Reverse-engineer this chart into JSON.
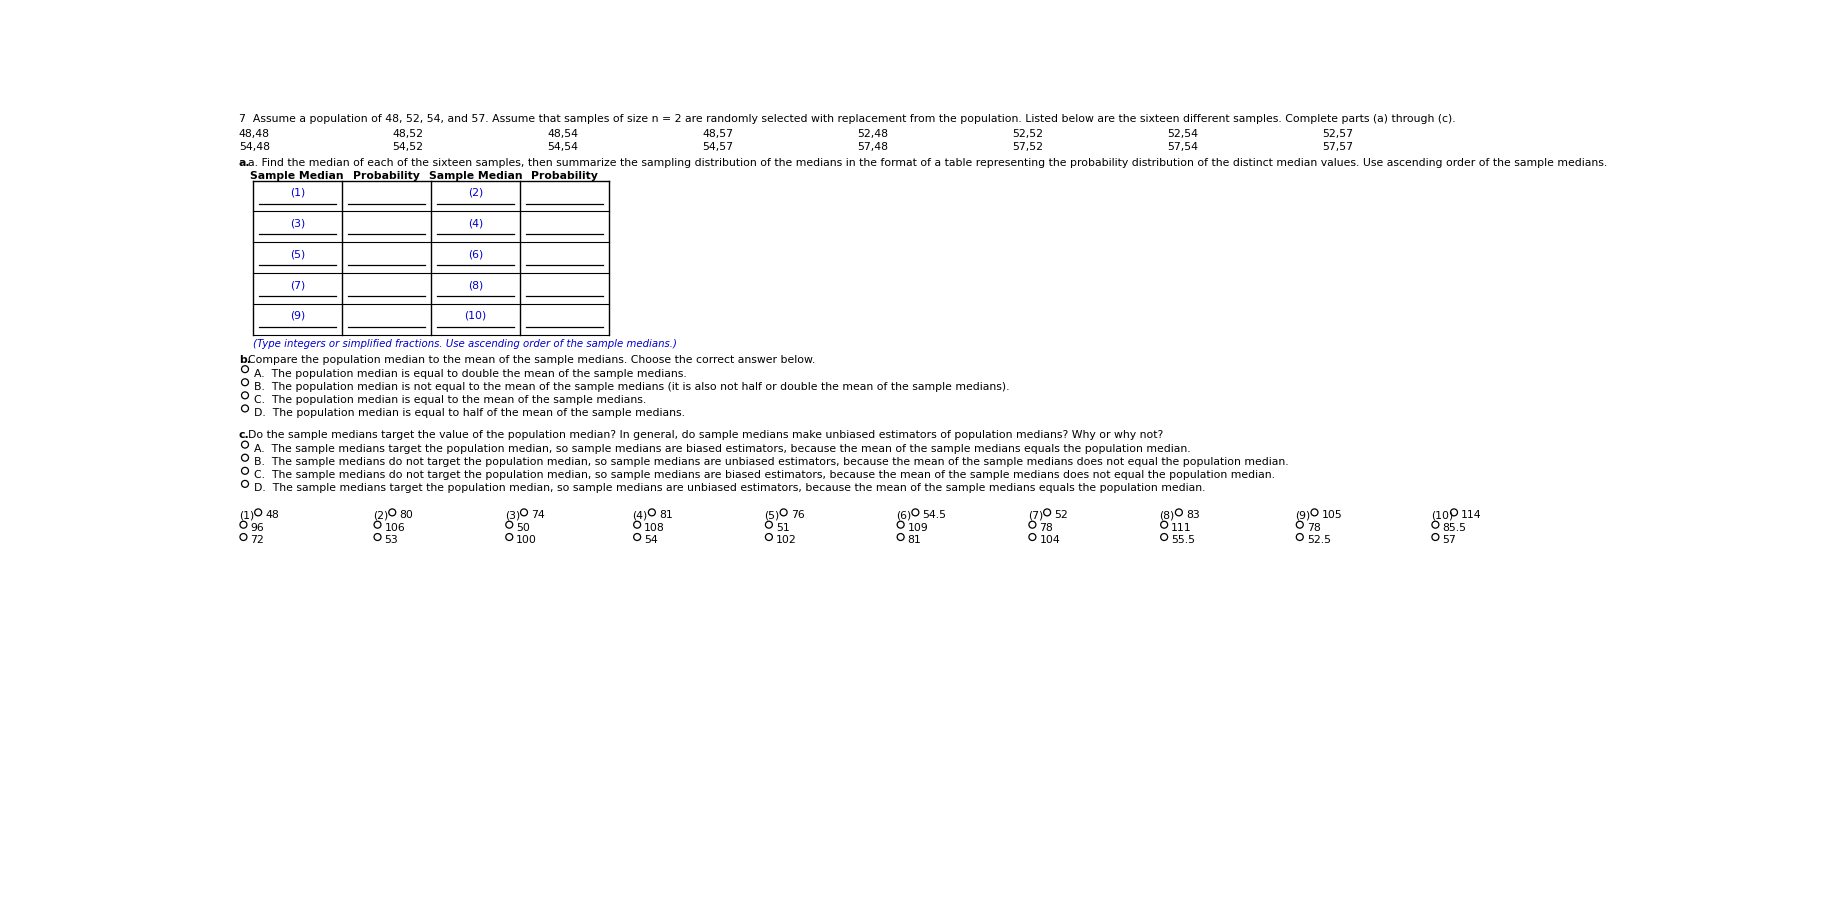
{
  "title_text": "7  Assume a population of 48, 52, 54, and 57. Assume that samples of size n = 2 are randomly selected with replacement from the population. Listed below are the sixteen different samples. Complete parts (a) through (c).",
  "samples_row1": [
    "48,48",
    "48,52",
    "48,54",
    "48,57",
    "52,48",
    "52,52",
    "52,54",
    "52,57"
  ],
  "samples_row2": [
    "54,48",
    "54,52",
    "54,54",
    "54,57",
    "57,48",
    "57,52",
    "57,54",
    "57,57"
  ],
  "part_a_text": "a. Find the median of each of the sixteen samples, then summarize the sampling distribution of the medians in the format of a table representing the probability distribution of the distinct median values. Use ascending order of the sample medians.",
  "table_col_headers": [
    "Sample Median",
    "Probability",
    "Sample Median",
    "Probability"
  ],
  "table_numbers": [
    "(1)",
    "(2)",
    "(3)",
    "(4)",
    "(5)",
    "(6)",
    "(7)",
    "(8)",
    "(9)",
    "(10)"
  ],
  "table_note": "(Type integers or simplified fractions. Use ascending order of the sample medians.)",
  "part_b_label": "b.",
  "part_b_text": "Compare the population median to the mean of the sample medians. Choose the correct answer below.",
  "part_b_options": [
    "A.  The population median is equal to double the mean of the sample medians.",
    "B.  The population median is not equal to the mean of the sample medians (it is also not half or double the mean of the sample medians).",
    "C.  The population median is equal to the mean of the sample medians.",
    "D.  The population median is equal to half of the mean of the sample medians."
  ],
  "part_c_label": "c.",
  "part_c_text": "Do the sample medians target the value of the population median? In general, do sample medians make unbiased estimators of population medians? Why or why not?",
  "part_c_options": [
    "A.  The sample medians target the population median, so sample medians are biased estimators, because the mean of the sample medians equals the population median.",
    "B.  The sample medians do not target the population median, so sample medians are unbiased estimators, because the mean of the sample medians does not equal the population median.",
    "C.  The sample medians do not target the population median, so sample medians are biased estimators, because the mean of the sample medians does not equal the population median.",
    "D.  The sample medians target the population median, so sample medians are unbiased estimators, because the mean of the sample medians equals the population median."
  ],
  "group_labels": [
    "(1)",
    "(2)",
    "(3)",
    "(4)",
    "(5)",
    "(6)",
    "(7)",
    "(8)",
    "(9)",
    "(10)"
  ],
  "r1_vals": [
    "48",
    "80",
    "74",
    "81",
    "76",
    "54.5",
    "52",
    "83",
    "105",
    "114"
  ],
  "r2_vals": [
    "96",
    "106",
    "50",
    "108",
    "51",
    "109",
    "78",
    "111",
    "78",
    "85.5"
  ],
  "r3_vals": [
    "72",
    "53",
    "100",
    "54",
    "102",
    "81",
    "104",
    "55.5",
    "52.5",
    "57"
  ],
  "bg_color": "#FFFFFF",
  "black": "#000000",
  "blue": "#0000CC",
  "gray": "#555555",
  "fs_main": 8.5,
  "fs_small": 7.8,
  "fs_header": 8.5
}
